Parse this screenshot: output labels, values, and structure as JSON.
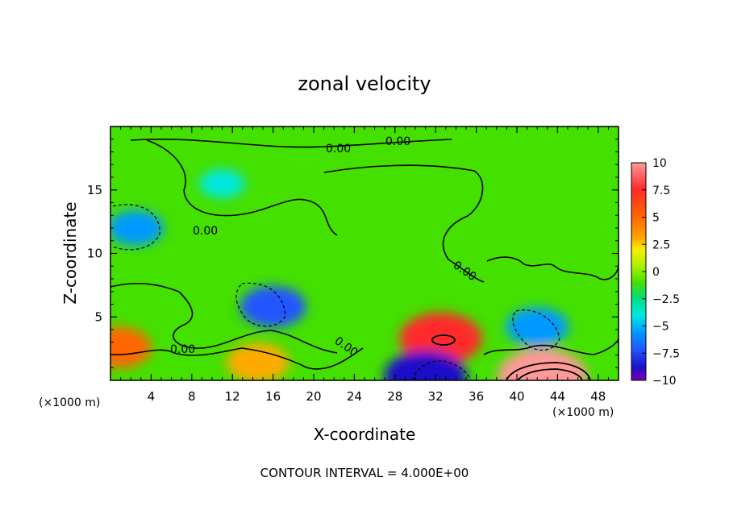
{
  "chart_data": {
    "type": "heatmap",
    "title": "zonal velocity",
    "xlabel": "X-coordinate",
    "ylabel": "Z-coordinate",
    "x_unit_left": "(×1000 m)",
    "x_unit_right": "(×1000 m)",
    "xlim": [
      0,
      50
    ],
    "ylim": [
      0,
      20
    ],
    "x_ticks": [
      4,
      8,
      12,
      16,
      20,
      24,
      28,
      32,
      36,
      40,
      44,
      48
    ],
    "y_ticks": [
      5,
      10,
      15
    ],
    "colorbar": {
      "min": -10,
      "max": 10,
      "ticks": [
        10,
        7.5,
        5,
        2.5,
        0,
        -2.5,
        -5,
        -7.5,
        -10
      ],
      "tick_labels": [
        "10",
        "7.5",
        "5",
        "2.5",
        "0",
        "−2.5",
        "−5",
        "−7.5",
        "−10"
      ],
      "colors": [
        "#ff9999",
        "#ff2b2b",
        "#ff6600",
        "#ffaa00",
        "#f4f000",
        "#a8f000",
        "#44e000",
        "#00e07a",
        "#00e8e0",
        "#0099ff",
        "#2255ff",
        "#1a10c8",
        "#7a00b0"
      ]
    },
    "contour_labels": [
      "0.00",
      "0.00",
      "0.00",
      "0.00",
      "0.00",
      "0.00"
    ],
    "footnote": "CONTOUR INTERVAL = 4.000E+00",
    "features": [
      {
        "x": 32.5,
        "z": 3.3,
        "value": 8.5
      },
      {
        "x": 14.5,
        "z": 1.4,
        "value": 5.5
      },
      {
        "x": 42.5,
        "z": 0.3,
        "value": 9.5
      },
      {
        "x": 0.8,
        "z": 2.6,
        "value": 6.0
      },
      {
        "x": 16.0,
        "z": 5.8,
        "value": -6.0
      },
      {
        "x": 2.5,
        "z": 12.0,
        "value": -4.5
      },
      {
        "x": 31.0,
        "z": 0.3,
        "value": -8.5
      },
      {
        "x": 42.0,
        "z": 4.2,
        "value": -5.5
      },
      {
        "x": 11.0,
        "z": 15.5,
        "value": -3.0
      },
      {
        "x": 20.0,
        "z": 18.5,
        "value": 0.5
      }
    ]
  }
}
